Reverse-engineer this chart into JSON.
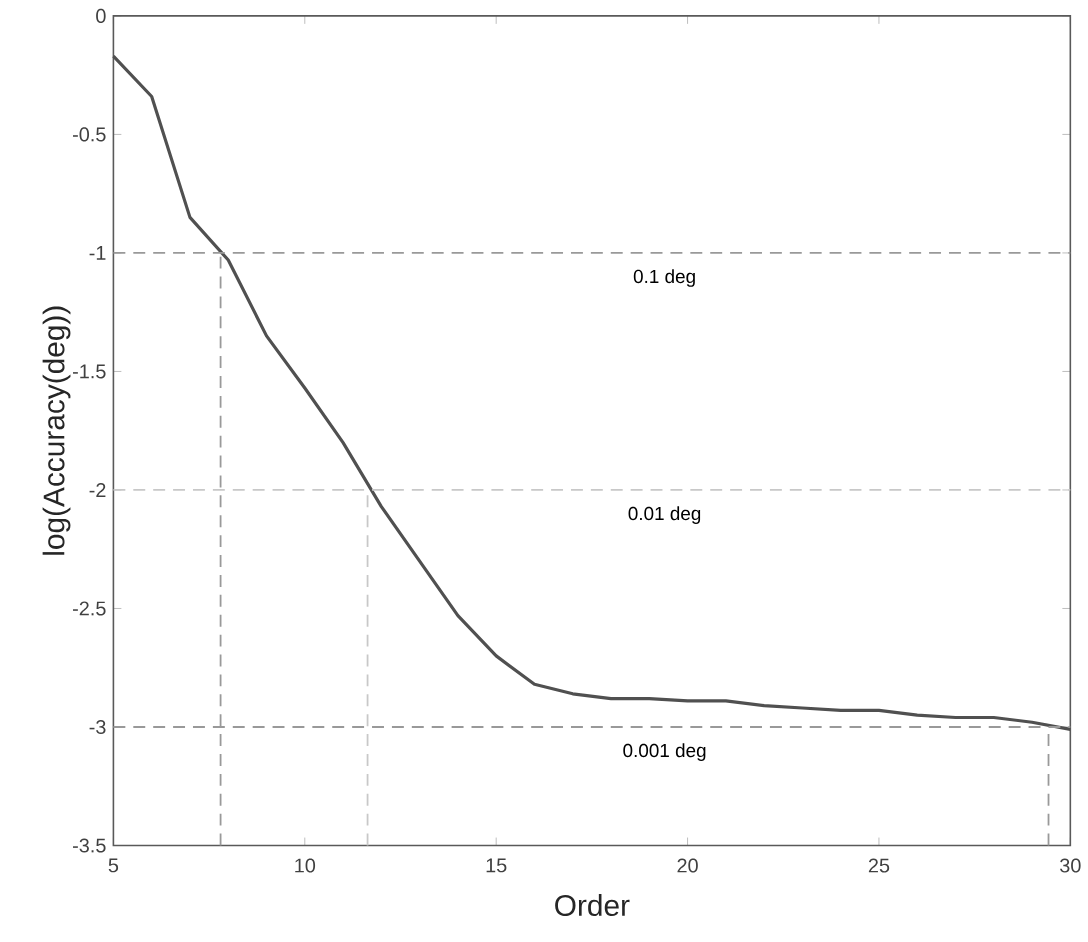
{
  "chart_data": {
    "type": "line",
    "xlabel": "Order",
    "ylabel": "log(Accuracy(deg))",
    "x": [
      5,
      6,
      7,
      8,
      9,
      10,
      11,
      12,
      13,
      14,
      15,
      16,
      17,
      18,
      19,
      20,
      21,
      22,
      23,
      24,
      25,
      26,
      27,
      28,
      29,
      30
    ],
    "series": [
      {
        "color": "#505050",
        "values": [
          -0.17,
          -0.34,
          -0.85,
          -1.03,
          -1.35,
          -1.57,
          -1.8,
          -2.07,
          -2.3,
          -2.53,
          -2.7,
          -2.82,
          -2.86,
          -2.88,
          -2.88,
          -2.89,
          -2.89,
          -2.91,
          -2.92,
          -2.93,
          -2.93,
          -2.95,
          -2.96,
          -2.96,
          -2.98,
          -3.01
        ]
      }
    ],
    "xlim": [
      5,
      30
    ],
    "ylim": [
      -3.5,
      0
    ],
    "xticks": [
      5,
      10,
      15,
      20,
      25,
      30
    ],
    "yticks": [
      -3.5,
      -3,
      -2.5,
      -2,
      -1.5,
      -1,
      -0.5,
      0
    ],
    "line_style": "solid",
    "marker": "none",
    "ref_lines": [
      {
        "axis": "y",
        "value": -1,
        "label": "0.1 deg",
        "color": "#999999",
        "line_style": "dashed"
      },
      {
        "axis": "y",
        "value": -2,
        "label": "0.01 deg",
        "color": "#c8c8c8",
        "line_style": "dashed"
      },
      {
        "axis": "y",
        "value": -3,
        "label": "0.001 deg",
        "color": "#999999",
        "line_style": "dashed"
      },
      {
        "axis": "x",
        "value": 7.8,
        "color": "#999999",
        "line_style": "dashed"
      },
      {
        "axis": "x",
        "value": 11.64,
        "color": "#c8c8c8",
        "line_style": "dashed"
      },
      {
        "axis": "x",
        "value": 29.43,
        "color": "#999999",
        "line_style": "dashed"
      }
    ]
  }
}
